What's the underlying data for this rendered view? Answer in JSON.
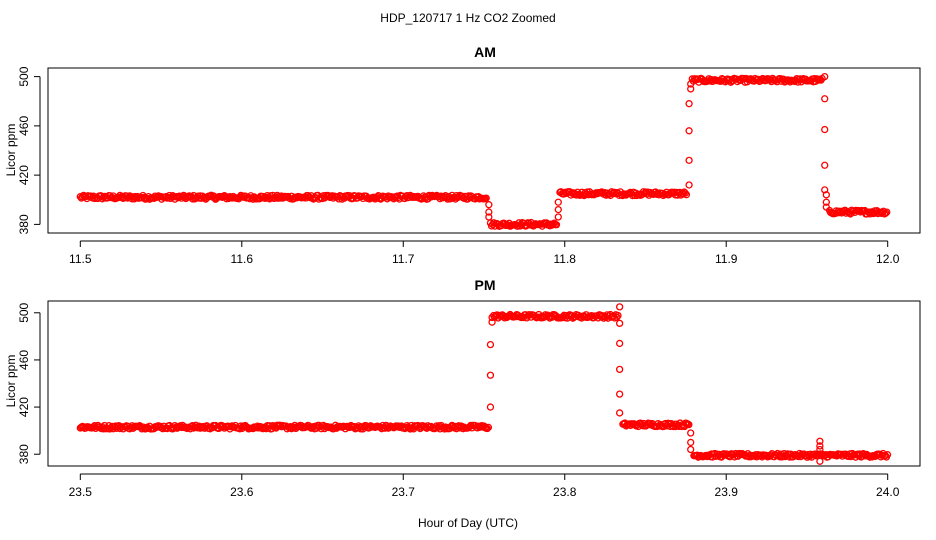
{
  "figure": {
    "title": "HDP_120717  1 Hz CO2 Zoomed",
    "xlabel": "Hour of Day (UTC)"
  },
  "colors": {
    "marker": "#ff0000",
    "axis": "#000000",
    "background": "#ffffff"
  },
  "chart_data": [
    {
      "type": "scatter",
      "title": "AM",
      "ylabel": "Licor ppm",
      "xlabel": "",
      "xlim": [
        11.48,
        12.02
      ],
      "ylim": [
        373,
        507
      ],
      "xticks": [
        11.5,
        11.6,
        11.7,
        11.8,
        11.9,
        12.0
      ],
      "xtick_labels": [
        "11.5",
        "11.6",
        "11.7",
        "11.8",
        "11.9",
        "12.0"
      ],
      "yticks": [
        380,
        420,
        460,
        500
      ],
      "ytick_labels": [
        "380",
        "420",
        "460",
        "500"
      ],
      "grid": false,
      "marker": "open-circle",
      "levels": [
        {
          "x_start": 11.5,
          "x_end": 11.752,
          "y": 402
        },
        {
          "x_start": 11.754,
          "x_end": 11.795,
          "y": 380
        },
        {
          "x_start": 11.797,
          "x_end": 11.876,
          "y": 405
        },
        {
          "x_start": 11.879,
          "x_end": 11.96,
          "y": 497
        },
        {
          "x_start": 11.964,
          "x_end": 12.0,
          "y": 390
        }
      ],
      "transitions": [
        {
          "x": 11.753,
          "y": [
            396,
            390,
            386
          ]
        },
        {
          "x": 11.796,
          "y": [
            386,
            392,
            398
          ]
        },
        {
          "x": 11.877,
          "y": [
            412,
            432,
            456,
            478
          ]
        },
        {
          "x": 11.878,
          "y": [
            490,
            494
          ]
        },
        {
          "x": 11.961,
          "y": [
            500,
            482,
            457,
            428,
            408
          ]
        },
        {
          "x": 11.962,
          "y": [
            404,
            398,
            394
          ]
        }
      ]
    },
    {
      "type": "scatter",
      "title": "PM",
      "ylabel": "Licor ppm",
      "xlabel": "",
      "xlim": [
        23.48,
        24.02
      ],
      "ylim": [
        370,
        510
      ],
      "xticks": [
        23.5,
        23.6,
        23.7,
        23.8,
        23.9,
        24.0
      ],
      "xtick_labels": [
        "23.5",
        "23.6",
        "23.7",
        "23.8",
        "23.9",
        "24.0"
      ],
      "yticks": [
        380,
        420,
        460,
        500
      ],
      "ytick_labels": [
        "380",
        "420",
        "460",
        "500"
      ],
      "grid": false,
      "marker": "open-circle",
      "levels": [
        {
          "x_start": 23.5,
          "x_end": 23.753,
          "y": 403
        },
        {
          "x_start": 23.756,
          "x_end": 23.833,
          "y": 497
        },
        {
          "x_start": 23.836,
          "x_end": 23.877,
          "y": 405
        },
        {
          "x_start": 23.88,
          "x_end": 24.0,
          "y": 379
        }
      ],
      "transitions": [
        {
          "x": 23.754,
          "y": [
            420,
            447,
            473
          ]
        },
        {
          "x": 23.755,
          "y": [
            492,
            496
          ]
        },
        {
          "x": 23.834,
          "y": [
            505,
            491,
            474,
            452,
            431,
            415
          ]
        },
        {
          "x": 23.878,
          "y": [
            398,
            390,
            384
          ]
        },
        {
          "x": 23.958,
          "y": [
            391,
            387,
            384,
            374
          ]
        }
      ]
    }
  ]
}
